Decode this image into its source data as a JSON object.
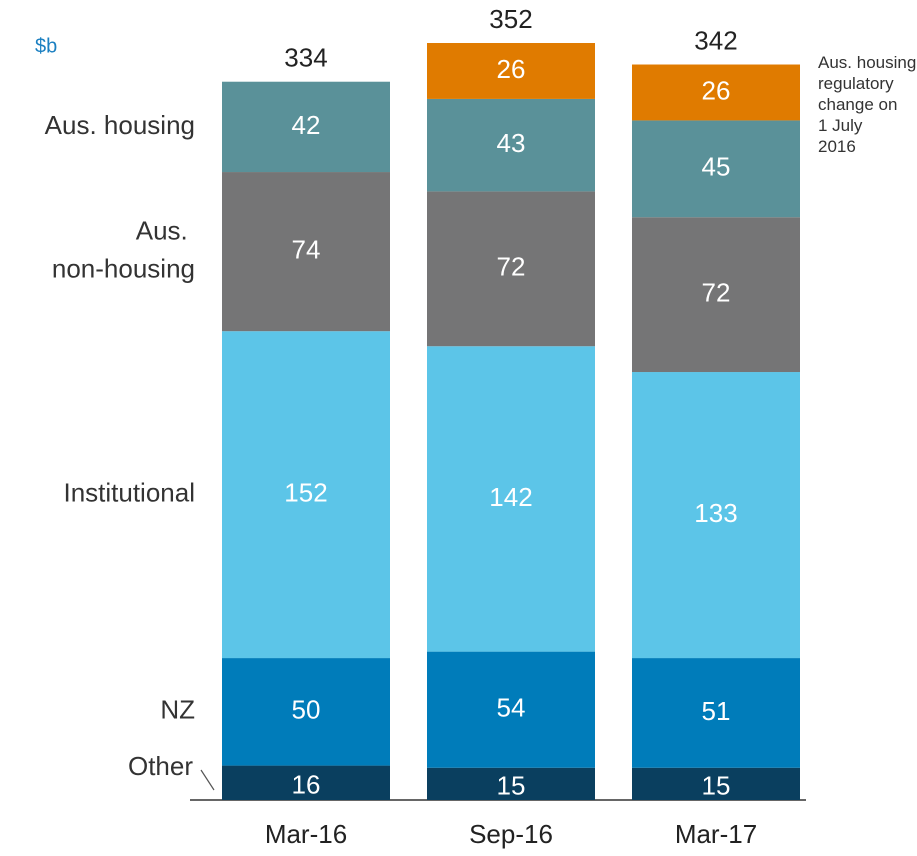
{
  "chart_data": {
    "type": "stacked_bar",
    "unit_label": "$b",
    "categories": [
      "Mar-16",
      "Sep-16",
      "Mar-17"
    ],
    "series": [
      {
        "name": "Other",
        "color": "#0a3f5f",
        "values": [
          16,
          15,
          15
        ]
      },
      {
        "name": "NZ",
        "color": "#007cba",
        "values": [
          50,
          54,
          51
        ]
      },
      {
        "name": "Institutional",
        "color": "#5cc5e8",
        "values": [
          152,
          142,
          133
        ]
      },
      {
        "name": "Aus. non-housing",
        "color": "#757576",
        "values": [
          74,
          72,
          72
        ]
      },
      {
        "name": "Aus. housing",
        "color": "#5a9199",
        "values": [
          42,
          43,
          45
        ]
      },
      {
        "name": "Aus. housing regulatory change on 1 July 2016",
        "color": "#e07b00",
        "values": [
          null,
          26,
          26
        ]
      }
    ],
    "totals": [
      334,
      352,
      342
    ],
    "ylim": [
      0,
      372
    ]
  }
}
